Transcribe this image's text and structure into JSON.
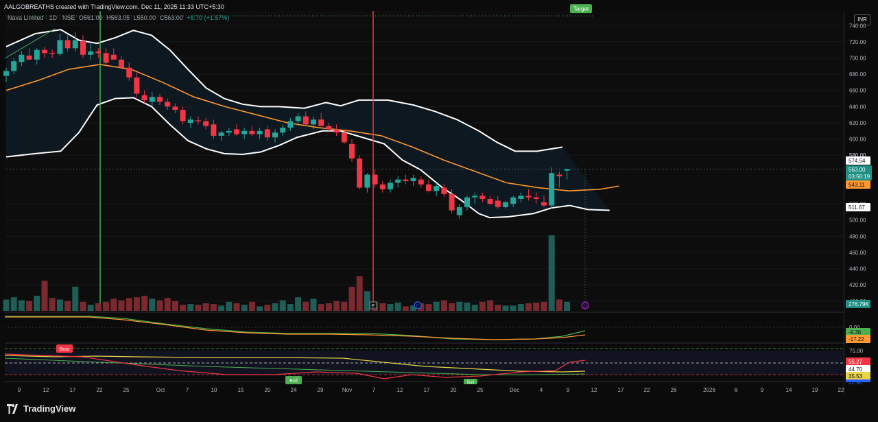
{
  "header": {
    "attribution": "AALGOBREATHS created with TradingView.com, Dec 11, 2025 11:33 UTC+5:30",
    "symbol": "Nava Limited · 1D · NSE",
    "open": "O561.00",
    "high": "H563.05",
    "low": "L550.00",
    "close": "C563.00",
    "change": "+8.70 (+1.57%)",
    "currency": "INR"
  },
  "footer": {
    "brand": "TradingView"
  },
  "colors": {
    "up": "#26a69a",
    "down": "#f23645",
    "bb": "#ffffff",
    "basis": "#ff9830",
    "target": "#4caf50",
    "vline_green": "#4caf50",
    "vline_red": "#f23645"
  },
  "chart_data": {
    "type": "candlestick",
    "price_axis": {
      "ticks": [
        740,
        720,
        700,
        680,
        660,
        640,
        620,
        600,
        580,
        520,
        500,
        480,
        460,
        440,
        420,
        400
      ],
      "range": [
        388,
        758
      ]
    },
    "date_axis": {
      "labels": [
        "9",
        "12",
        "17",
        "22",
        "25",
        "Oct",
        "7",
        "10",
        "15",
        "20",
        "24",
        "29",
        "Nov",
        "7",
        "12",
        "17",
        "20",
        "25",
        "Dec",
        "4",
        "9",
        "12",
        "17",
        "22",
        "26",
        "2026",
        "6",
        "9",
        "14",
        "19",
        "22"
      ]
    },
    "candles": [
      {
        "o": 678,
        "h": 688,
        "l": 670,
        "c": 684
      },
      {
        "o": 684,
        "h": 700,
        "l": 680,
        "c": 696
      },
      {
        "o": 695,
        "h": 708,
        "l": 690,
        "c": 704
      },
      {
        "o": 703,
        "h": 712,
        "l": 698,
        "c": 698
      },
      {
        "o": 698,
        "h": 712,
        "l": 692,
        "c": 710
      },
      {
        "o": 710,
        "h": 714,
        "l": 700,
        "c": 706
      },
      {
        "o": 706,
        "h": 710,
        "l": 700,
        "c": 705
      },
      {
        "o": 705,
        "h": 730,
        "l": 702,
        "c": 722
      },
      {
        "o": 722,
        "h": 728,
        "l": 708,
        "c": 712
      },
      {
        "o": 712,
        "h": 732,
        "l": 708,
        "c": 722
      },
      {
        "o": 721,
        "h": 728,
        "l": 700,
        "c": 704
      },
      {
        "o": 704,
        "h": 718,
        "l": 698,
        "c": 708
      },
      {
        "o": 708,
        "h": 712,
        "l": 700,
        "c": 706
      },
      {
        "o": 706,
        "h": 712,
        "l": 690,
        "c": 694
      },
      {
        "o": 704,
        "h": 712,
        "l": 700,
        "c": 698
      },
      {
        "o": 698,
        "h": 702,
        "l": 686,
        "c": 688
      },
      {
        "o": 688,
        "h": 694,
        "l": 672,
        "c": 676
      },
      {
        "o": 676,
        "h": 682,
        "l": 652,
        "c": 656
      },
      {
        "o": 654,
        "h": 660,
        "l": 644,
        "c": 648
      },
      {
        "o": 646,
        "h": 658,
        "l": 640,
        "c": 652
      },
      {
        "o": 652,
        "h": 656,
        "l": 642,
        "c": 646
      },
      {
        "o": 646,
        "h": 650,
        "l": 636,
        "c": 640
      },
      {
        "o": 640,
        "h": 644,
        "l": 632,
        "c": 636
      },
      {
        "o": 636,
        "h": 640,
        "l": 618,
        "c": 622
      },
      {
        "o": 620,
        "h": 628,
        "l": 614,
        "c": 624
      },
      {
        "o": 623,
        "h": 628,
        "l": 618,
        "c": 622
      },
      {
        "o": 622,
        "h": 626,
        "l": 612,
        "c": 616
      },
      {
        "o": 618,
        "h": 624,
        "l": 600,
        "c": 604
      },
      {
        "o": 604,
        "h": 610,
        "l": 598,
        "c": 608
      },
      {
        "o": 608,
        "h": 614,
        "l": 604,
        "c": 610
      },
      {
        "o": 612,
        "h": 618,
        "l": 604,
        "c": 606
      },
      {
        "o": 606,
        "h": 614,
        "l": 600,
        "c": 610
      },
      {
        "o": 610,
        "h": 616,
        "l": 604,
        "c": 606
      },
      {
        "o": 606,
        "h": 614,
        "l": 600,
        "c": 610
      },
      {
        "o": 612,
        "h": 616,
        "l": 598,
        "c": 602
      },
      {
        "o": 602,
        "h": 612,
        "l": 596,
        "c": 608
      },
      {
        "o": 608,
        "h": 618,
        "l": 604,
        "c": 614
      },
      {
        "o": 614,
        "h": 626,
        "l": 610,
        "c": 622
      },
      {
        "o": 622,
        "h": 632,
        "l": 616,
        "c": 628
      },
      {
        "o": 628,
        "h": 634,
        "l": 616,
        "c": 618
      },
      {
        "o": 618,
        "h": 628,
        "l": 612,
        "c": 624
      },
      {
        "o": 624,
        "h": 632,
        "l": 616,
        "c": 616
      },
      {
        "o": 616,
        "h": 620,
        "l": 608,
        "c": 612
      },
      {
        "o": 612,
        "h": 618,
        "l": 604,
        "c": 608
      },
      {
        "o": 608,
        "h": 612,
        "l": 594,
        "c": 596
      },
      {
        "o": 594,
        "h": 600,
        "l": 572,
        "c": 576
      },
      {
        "o": 576,
        "h": 580,
        "l": 538,
        "c": 540
      },
      {
        "o": 540,
        "h": 558,
        "l": 534,
        "c": 556
      },
      {
        "o": 556,
        "h": 562,
        "l": 540,
        "c": 544
      },
      {
        "o": 544,
        "h": 548,
        "l": 534,
        "c": 538
      },
      {
        "o": 538,
        "h": 550,
        "l": 534,
        "c": 546
      },
      {
        "o": 546,
        "h": 554,
        "l": 540,
        "c": 550
      },
      {
        "o": 550,
        "h": 556,
        "l": 544,
        "c": 548
      },
      {
        "o": 548,
        "h": 556,
        "l": 542,
        "c": 552
      },
      {
        "o": 550,
        "h": 554,
        "l": 540,
        "c": 544
      },
      {
        "o": 544,
        "h": 550,
        "l": 534,
        "c": 536
      },
      {
        "o": 536,
        "h": 546,
        "l": 530,
        "c": 542
      },
      {
        "o": 540,
        "h": 544,
        "l": 528,
        "c": 532
      },
      {
        "o": 532,
        "h": 538,
        "l": 508,
        "c": 512
      },
      {
        "o": 506,
        "h": 520,
        "l": 502,
        "c": 516
      },
      {
        "o": 516,
        "h": 530,
        "l": 512,
        "c": 528
      },
      {
        "o": 528,
        "h": 534,
        "l": 520,
        "c": 530
      },
      {
        "o": 530,
        "h": 534,
        "l": 522,
        "c": 526
      },
      {
        "o": 526,
        "h": 530,
        "l": 518,
        "c": 520
      },
      {
        "o": 524,
        "h": 530,
        "l": 514,
        "c": 516
      },
      {
        "o": 516,
        "h": 524,
        "l": 514,
        "c": 522
      },
      {
        "o": 520,
        "h": 530,
        "l": 516,
        "c": 528
      },
      {
        "o": 526,
        "h": 534,
        "l": 522,
        "c": 530
      },
      {
        "o": 530,
        "h": 538,
        "l": 524,
        "c": 528
      },
      {
        "o": 528,
        "h": 534,
        "l": 520,
        "c": 526
      },
      {
        "o": 522,
        "h": 530,
        "l": 516,
        "c": 518
      },
      {
        "o": 518,
        "h": 565,
        "l": 514,
        "c": 558
      },
      {
        "o": 556,
        "h": 560,
        "l": 540,
        "c": 554
      },
      {
        "o": 561,
        "h": 563.05,
        "l": 550,
        "c": 563
      }
    ],
    "volume": [
      0.15,
      0.18,
      0.14,
      0.13,
      0.2,
      0.4,
      0.17,
      0.15,
      0.13,
      0.32,
      0.12,
      0.08,
      0.1,
      0.12,
      0.16,
      0.14,
      0.17,
      0.18,
      0.2,
      0.16,
      0.14,
      0.17,
      0.13,
      0.08,
      0.09,
      0.08,
      0.1,
      0.09,
      0.07,
      0.12,
      0.1,
      0.08,
      0.12,
      0.06,
      0.08,
      0.1,
      0.14,
      0.09,
      0.18,
      0.12,
      0.16,
      0.09,
      0.1,
      0.13,
      0.12,
      0.32,
      0.46,
      0.26,
      0.12,
      0.1,
      0.09,
      0.11,
      0.06,
      0.07,
      0.1,
      0.09,
      0.12,
      0.14,
      0.1,
      0.12,
      0.11,
      0.08,
      0.12,
      0.14,
      0.08,
      0.07,
      0.07,
      0.09,
      0.1,
      0.11,
      0.12,
      1.0,
      0.15,
      0.12
    ],
    "bollinger": {
      "upper": [
        [
          0,
          714
        ],
        [
          8,
          730
        ],
        [
          15,
          735
        ],
        [
          20,
          722
        ],
        [
          25,
          718
        ],
        [
          30,
          725
        ],
        [
          35,
          734
        ],
        [
          40,
          728
        ],
        [
          45,
          710
        ],
        [
          50,
          686
        ],
        [
          55,
          663
        ],
        [
          60,
          650
        ],
        [
          65,
          643
        ],
        [
          70,
          640
        ],
        [
          75,
          640
        ],
        [
          82,
          638
        ],
        [
          88,
          645
        ],
        [
          92,
          641
        ],
        [
          97,
          648
        ],
        [
          105,
          648
        ],
        [
          112,
          642
        ],
        [
          118,
          634
        ],
        [
          124,
          624
        ],
        [
          130,
          610
        ],
        [
          135,
          596
        ],
        [
          140,
          585
        ],
        [
          146,
          585
        ],
        [
          153,
          590
        ]
      ],
      "lower": [
        [
          0,
          578
        ],
        [
          8,
          582
        ],
        [
          15,
          585
        ],
        [
          20,
          608
        ],
        [
          25,
          642
        ],
        [
          30,
          650
        ],
        [
          35,
          651
        ],
        [
          40,
          640
        ],
        [
          45,
          618
        ],
        [
          50,
          598
        ],
        [
          55,
          588
        ],
        [
          60,
          582
        ],
        [
          65,
          581
        ],
        [
          70,
          584
        ],
        [
          75,
          592
        ],
        [
          80,
          602
        ],
        [
          87,
          610
        ],
        [
          92,
          610
        ],
        [
          98,
          602
        ],
        [
          104,
          594
        ],
        [
          109,
          574
        ],
        [
          114,
          562
        ],
        [
          120,
          540
        ],
        [
          125,
          525
        ],
        [
          130,
          508
        ],
        [
          133,
          503
        ],
        [
          138,
          504
        ],
        [
          145,
          508
        ],
        [
          150,
          515
        ],
        [
          155,
          518
        ],
        [
          160,
          513
        ],
        [
          166,
          512
        ]
      ],
      "basis": [
        [
          0,
          660
        ],
        [
          10,
          672
        ],
        [
          20,
          686
        ],
        [
          30,
          692
        ],
        [
          40,
          686
        ],
        [
          50,
          670
        ],
        [
          60,
          652
        ],
        [
          70,
          640
        ],
        [
          80,
          630
        ],
        [
          90,
          620
        ],
        [
          100,
          614
        ],
        [
          110,
          610
        ],
        [
          120,
          604
        ],
        [
          130,
          590
        ],
        [
          140,
          574
        ],
        [
          150,
          560
        ],
        [
          160,
          546
        ],
        [
          170,
          540
        ],
        [
          180,
          536
        ],
        [
          190,
          538
        ],
        [
          196,
          542
        ]
      ]
    },
    "price_labels": {
      "bb_upper": "574.54",
      "last": "563.00",
      "countdown": "03:56:19",
      "basis": "543.11",
      "bb_lower": "511.67",
      "volume": "276.79K",
      "hidden": "580.00"
    },
    "target_label": "Target",
    "target_price": 752,
    "macd": {
      "labels": [
        "0.00",
        "-9.36",
        "-17.22"
      ]
    },
    "rsi": {
      "labels": [
        "75.00",
        "55.27",
        "44.70",
        "35.53",
        "22.90"
      ],
      "markers": [
        "Bear",
        "Bull",
        "Bull"
      ]
    },
    "events": [
      "E",
      "D"
    ]
  }
}
